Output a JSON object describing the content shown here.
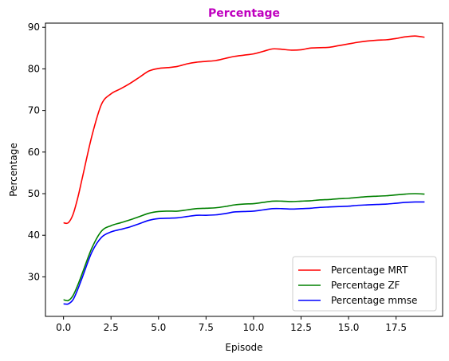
{
  "chart_data": {
    "type": "line",
    "title": "Percentage",
    "title_color": "#bf00bf",
    "xlabel": "Episode",
    "ylabel": "Percentage",
    "xlim": [
      -0.95,
      19.95
    ],
    "ylim": [
      20.5,
      91.0
    ],
    "xticks": [
      0.0,
      2.5,
      5.0,
      7.5,
      10.0,
      12.5,
      15.0,
      17.5
    ],
    "xtick_labels": [
      "0.0",
      "2.5",
      "5.0",
      "7.5",
      "10.0",
      "12.5",
      "15.0",
      "17.5"
    ],
    "yticks": [
      30,
      40,
      50,
      60,
      70,
      80,
      90
    ],
    "ytick_labels": [
      "30",
      "40",
      "50",
      "60",
      "70",
      "80",
      "90"
    ],
    "grid": false,
    "legend_position": "lower-right",
    "x": [
      0,
      0.25,
      0.5,
      0.75,
      1.0,
      1.5,
      2.0,
      2.5,
      3.0,
      3.5,
      4.0,
      4.5,
      5.0,
      5.5,
      6.0,
      6.5,
      7.0,
      7.5,
      8.0,
      8.5,
      9.0,
      9.5,
      10.0,
      10.5,
      11.0,
      11.5,
      12.0,
      12.5,
      13.0,
      13.5,
      14.0,
      14.5,
      15.0,
      15.5,
      16.0,
      16.5,
      17.0,
      17.5,
      18.0,
      18.5,
      19.0
    ],
    "series": [
      {
        "name": "Percentage MRT",
        "color": "#ff0000",
        "values": [
          43.0,
          43.0,
          45.0,
          49.0,
          54.0,
          64.0,
          71.5,
          74.0,
          75.2,
          76.5,
          78.0,
          79.5,
          80.1,
          80.3,
          80.6,
          81.2,
          81.6,
          81.8,
          82.0,
          82.5,
          83.0,
          83.3,
          83.6,
          84.2,
          84.8,
          84.7,
          84.5,
          84.6,
          85.0,
          85.1,
          85.2,
          85.6,
          86.0,
          86.4,
          86.7,
          86.9,
          87.0,
          87.3,
          87.7,
          87.9,
          87.6
        ]
      },
      {
        "name": "Percentage ZF",
        "color": "#008000",
        "values": [
          24.5,
          24.3,
          25.5,
          28.0,
          31.0,
          37.0,
          41.0,
          42.3,
          43.0,
          43.7,
          44.5,
          45.3,
          45.7,
          45.8,
          45.8,
          46.1,
          46.4,
          46.5,
          46.6,
          46.9,
          47.3,
          47.5,
          47.6,
          47.9,
          48.2,
          48.2,
          48.1,
          48.2,
          48.3,
          48.5,
          48.6,
          48.8,
          48.9,
          49.1,
          49.3,
          49.4,
          49.5,
          49.7,
          49.9,
          50.0,
          49.9
        ]
      },
      {
        "name": "Percentage mmse",
        "color": "#0000ff",
        "values": [
          23.5,
          23.5,
          24.5,
          27.0,
          30.0,
          36.0,
          39.5,
          40.8,
          41.4,
          42.0,
          42.8,
          43.6,
          44.0,
          44.1,
          44.2,
          44.5,
          44.8,
          44.8,
          44.9,
          45.2,
          45.6,
          45.7,
          45.8,
          46.1,
          46.4,
          46.4,
          46.3,
          46.4,
          46.5,
          46.7,
          46.8,
          46.9,
          47.0,
          47.2,
          47.3,
          47.4,
          47.5,
          47.7,
          47.9,
          48.0,
          48.0
        ]
      }
    ]
  }
}
